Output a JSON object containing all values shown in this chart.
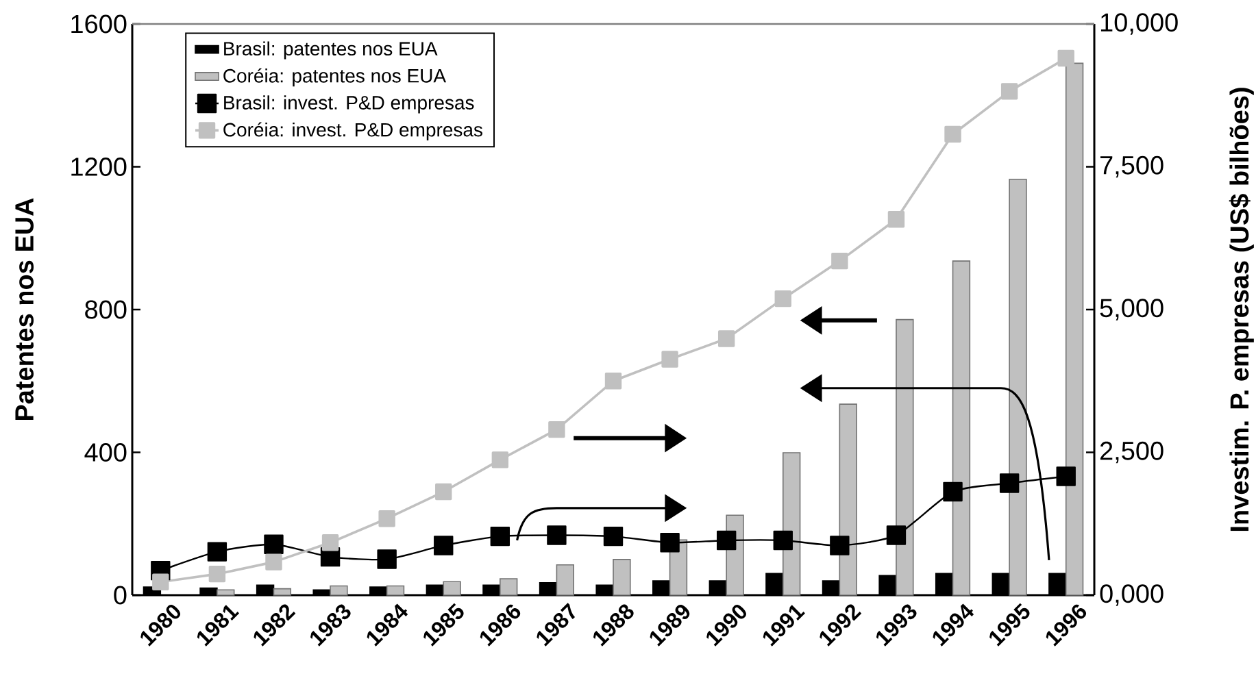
{
  "chart_data": {
    "type": "bar",
    "ylabel": "Patentes nos EUA",
    "y2label": "Investim. P. empresas (US$ bilhões)",
    "categories": [
      "1980",
      "1981",
      "1982",
      "1983",
      "1984",
      "1985",
      "1986",
      "1987",
      "1988",
      "1989",
      "1990",
      "1991",
      "1992",
      "1993",
      "1994",
      "1995",
      "1996"
    ],
    "ylim": [
      0,
      1600
    ],
    "yticks": [
      0,
      400,
      800,
      1200,
      1600
    ],
    "y2lim": [
      0,
      10000
    ],
    "y2ticks": [
      {
        "value": 0,
        "label": "0,000"
      },
      {
        "value": 2500,
        "label": "2,500"
      },
      {
        "value": 5000,
        "label": "5,000"
      },
      {
        "value": 7500,
        "label": "7,500"
      },
      {
        "value": 10000,
        "label": "10,000"
      }
    ],
    "legend": "top left",
    "series": [
      {
        "name": "Brasil: patentes nos EUA",
        "color": "#000000",
        "values": [
          23,
          20,
          28,
          15,
          23,
          28,
          28,
          35,
          28,
          40,
          40,
          61,
          40,
          55,
          61,
          61,
          61
        ]
      },
      {
        "name": "Coréia: patentes nos EUA",
        "color": "#c0c0c0",
        "values": [
          null,
          15,
          18,
          26,
          26,
          38,
          46,
          85,
          100,
          155,
          224,
          399,
          535,
          772,
          936,
          1165,
          1490
        ]
      },
      {
        "name": "Brasil: invest. P&D empresas",
        "type": "line",
        "axis": "y2",
        "marker": "square",
        "color": "#000000",
        "values": [
          430,
          760,
          890,
          670,
          630,
          870,
          1030,
          1050,
          1030,
          920,
          960,
          960,
          870,
          1050,
          1810,
          1960,
          2080
        ]
      },
      {
        "name": "Coréia: invest. P&D empresas",
        "type": "line",
        "axis": "y2",
        "marker": "square",
        "color": "#c0c0c0",
        "values": [
          230,
          370,
          580,
          920,
          1340,
          1810,
          2370,
          2900,
          3750,
          4130,
          4490,
          5190,
          5850,
          6580,
          8070,
          8820,
          9400
        ]
      }
    ]
  }
}
